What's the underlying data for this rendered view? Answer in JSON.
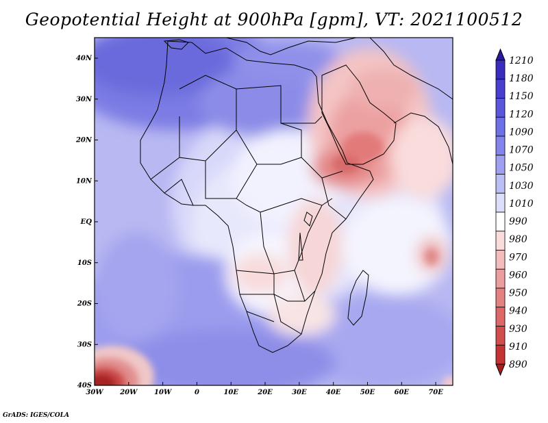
{
  "title": "Geopotential Height at 900hPa [gpm], VT: 2021100512",
  "credit": "GrADS: IGES/COLA",
  "map": {
    "region": "Africa and Middle East",
    "variable": "Geopotential Height at 900hPa",
    "units": "gpm",
    "valid_time": "2021100512",
    "lon_range": [
      -30,
      75
    ],
    "lat_range": [
      -40,
      45
    ],
    "lon_ticks": [
      "30W",
      "20W",
      "10W",
      "0",
      "10E",
      "20E",
      "30E",
      "40E",
      "50E",
      "60E",
      "70E"
    ],
    "lat_ticks": [
      "40N",
      "30N",
      "20N",
      "10N",
      "EQ",
      "10S",
      "20S",
      "30S",
      "40S"
    ],
    "colorbar": {
      "labels": [
        "1210",
        "1180",
        "1150",
        "1120",
        "1090",
        "1070",
        "1050",
        "1030",
        "1010",
        "990",
        "980",
        "970",
        "960",
        "950",
        "940",
        "930",
        "910",
        "890"
      ],
      "colors": [
        "#2a1aa0",
        "#3a2cbc",
        "#4a3ed0",
        "#5c56dc",
        "#6e70e6",
        "#8484ec",
        "#a0a0f2",
        "#bcbef6",
        "#dcdefa",
        "#ffffff",
        "#fadcdc",
        "#f4bcbc",
        "#ec9e9e",
        "#e48282",
        "#dc6868",
        "#d24e4e",
        "#c43434",
        "#a81e1e"
      ]
    },
    "features": {
      "low_pressure_southwest": "deep red trough at 35S-40S, 20W-30W",
      "high_pressure_north": "blue ridge over Sahara / Mediterranean",
      "thermal_low": "red low over Arabian Peninsula and Red Sea",
      "indian_ocean_low": "small red cell near 10S 70E"
    }
  }
}
